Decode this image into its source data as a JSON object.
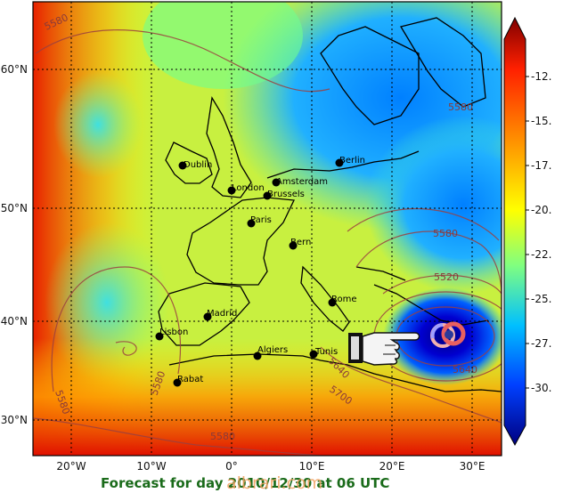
{
  "map": {
    "lat_labels": [
      "60°N",
      "50°N",
      "40°N",
      "30°N"
    ],
    "lon_labels": [
      "20°W",
      "10°W",
      "0°",
      "10°E",
      "20°E",
      "30°E"
    ],
    "cities": [
      "Dublin",
      "London",
      "Amsterdam",
      "Brussels",
      "Paris",
      "Berlin",
      "Bern",
      "Madrid",
      "Rome",
      "Lisbon",
      "Algiers",
      "Tunis",
      "Rabat"
    ],
    "contour_labels": [
      "5580",
      "5580",
      "5580",
      "5580",
      "5520",
      "5640",
      "5640",
      "5700",
      "5580",
      "5580"
    ],
    "low_pressure_value": "5520",
    "colors": {
      "warm": "#d40000",
      "cold": "#00008b",
      "contour": "#9b4040"
    }
  },
  "colorbar": {
    "tick_labels": [
      "-12.",
      "-15.",
      "-17.",
      "-20.",
      "-22.",
      "-25.",
      "-27.",
      "-30."
    ],
    "colors": [
      "#800000",
      "#ff2000",
      "#ff9900",
      "#ffff00",
      "#80ff80",
      "#00c0ff",
      "#0040ff",
      "#000080"
    ]
  },
  "caption": "Forecast for day 2010/12/30 at 06 UTC",
  "watermark": "albrari.com",
  "icons": [
    "pointing-hand-icon",
    "spinner-icon"
  ]
}
